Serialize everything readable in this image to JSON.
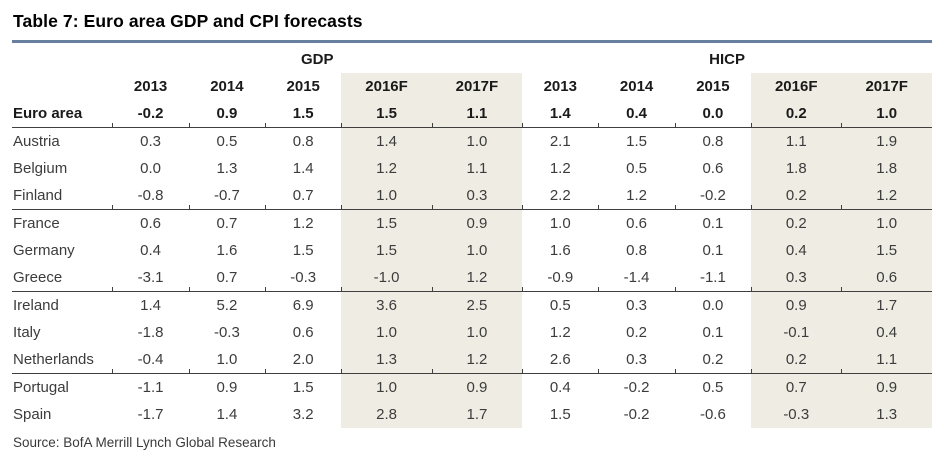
{
  "title": "Table 7: Euro area GDP and CPI forecasts",
  "source": "Source: BofA Merrill Lynch Global Research",
  "colors": {
    "title_rule": "#67809f",
    "forecast_column_bg": "#efede3",
    "separator_line": "#3f3f3f"
  },
  "table": {
    "group_headers": [
      "GDP",
      "HICP"
    ],
    "years": [
      "2013",
      "2014",
      "2015",
      "2016F",
      "2017F"
    ],
    "rows": [
      {
        "label": "Euro area",
        "values": [
          "-0.2",
          "0.9",
          "1.5",
          "1.5",
          "1.1",
          "1.4",
          "0.4",
          "0.0",
          "0.2",
          "1.0"
        ]
      },
      {
        "label": "Austria",
        "values": [
          "0.3",
          "0.5",
          "0.8",
          "1.4",
          "1.0",
          "2.1",
          "1.5",
          "0.8",
          "1.1",
          "1.9"
        ]
      },
      {
        "label": "Belgium",
        "values": [
          "0.0",
          "1.3",
          "1.4",
          "1.2",
          "1.1",
          "1.2",
          "0.5",
          "0.6",
          "1.8",
          "1.8"
        ]
      },
      {
        "label": "Finland",
        "values": [
          "-0.8",
          "-0.7",
          "0.7",
          "1.0",
          "0.3",
          "2.2",
          "1.2",
          "-0.2",
          "0.2",
          "1.2"
        ]
      },
      {
        "label": "France",
        "values": [
          "0.6",
          "0.7",
          "1.2",
          "1.5",
          "0.9",
          "1.0",
          "0.6",
          "0.1",
          "0.2",
          "1.0"
        ]
      },
      {
        "label": "Germany",
        "values": [
          "0.4",
          "1.6",
          "1.5",
          "1.5",
          "1.0",
          "1.6",
          "0.8",
          "0.1",
          "0.4",
          "1.5"
        ]
      },
      {
        "label": "Greece",
        "values": [
          "-3.1",
          "0.7",
          "-0.3",
          "-1.0",
          "1.2",
          "-0.9",
          "-1.4",
          "-1.1",
          "0.3",
          "0.6"
        ]
      },
      {
        "label": "Ireland",
        "values": [
          "1.4",
          "5.2",
          "6.9",
          "3.6",
          "2.5",
          "0.5",
          "0.3",
          "0.0",
          "0.9",
          "1.7"
        ]
      },
      {
        "label": "Italy",
        "values": [
          "-1.8",
          "-0.3",
          "0.6",
          "1.0",
          "1.0",
          "1.2",
          "0.2",
          "0.1",
          "-0.1",
          "0.4"
        ]
      },
      {
        "label": "Netherlands",
        "values": [
          "-0.4",
          "1.0",
          "2.0",
          "1.3",
          "1.2",
          "2.6",
          "0.3",
          "0.2",
          "0.2",
          "1.1"
        ]
      },
      {
        "label": "Portugal",
        "values": [
          "-1.1",
          "0.9",
          "1.5",
          "1.0",
          "0.9",
          "0.4",
          "-0.2",
          "0.5",
          "0.7",
          "0.9"
        ]
      },
      {
        "label": "Spain",
        "values": [
          "-1.7",
          "1.4",
          "3.2",
          "2.8",
          "1.7",
          "1.5",
          "-0.2",
          "-0.6",
          "-0.3",
          "1.3"
        ]
      }
    ]
  }
}
